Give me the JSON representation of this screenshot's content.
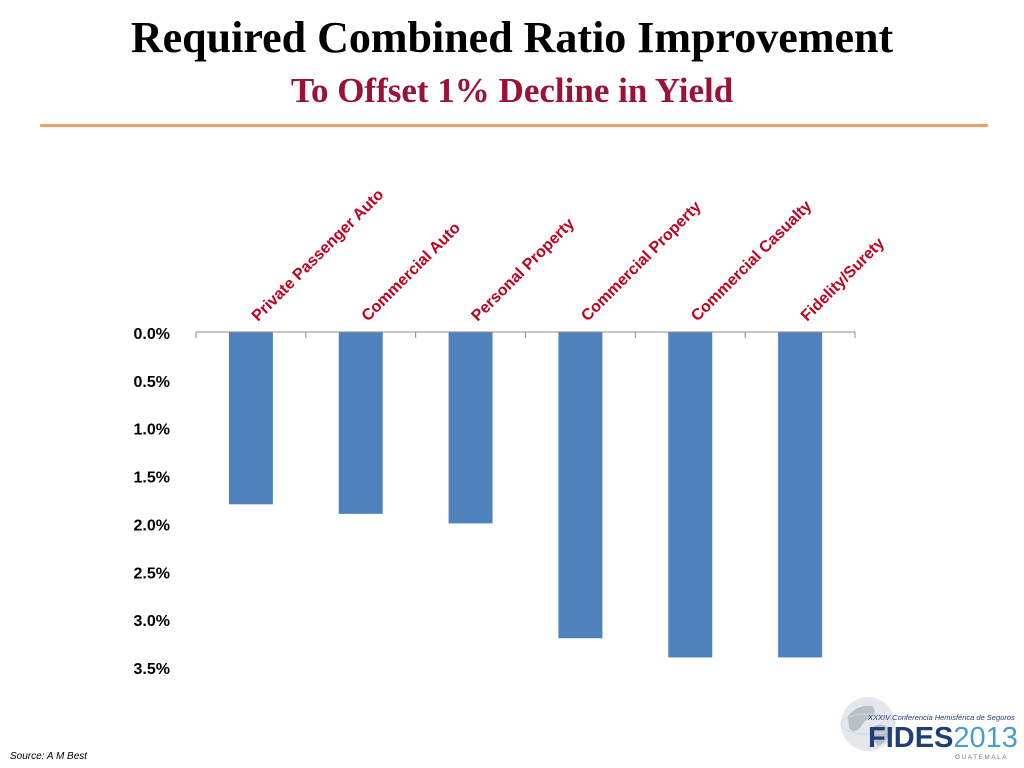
{
  "slide": {
    "title": "Required Combined Ratio Improvement",
    "subtitle": "To Offset 1% Decline in Yield",
    "source": "Source: A M Best"
  },
  "colors": {
    "subtitle": "#9b1237",
    "rule": "#f0a060",
    "bar": "#4f81bd",
    "category_label": "#c0001f",
    "axis": "#8c8c8c"
  },
  "logo": {
    "subline": "XXXIV Conferencia Hemisférica de Seguros",
    "word_main": "FIDES",
    "word_year": "2013",
    "country": "GUATEMALA",
    "icon": "globe-icon"
  },
  "chart_data": {
    "type": "bar",
    "orientation": "vertical",
    "categories": [
      "Private Passenger Auto",
      "Commercial Auto",
      "Personal Property",
      "Commercial Property",
      "Commercial Casualty",
      "Fidelity/Surety"
    ],
    "values": [
      1.8,
      1.9,
      2.0,
      3.2,
      3.4,
      3.4
    ],
    "ylim": [
      0,
      3.5
    ],
    "y_inverted": true,
    "yticks": [
      "0.0%",
      "0.5%",
      "1.0%",
      "1.5%",
      "2.0%",
      "2.5%",
      "3.0%",
      "3.5%"
    ],
    "grid": false,
    "legend": "none"
  }
}
